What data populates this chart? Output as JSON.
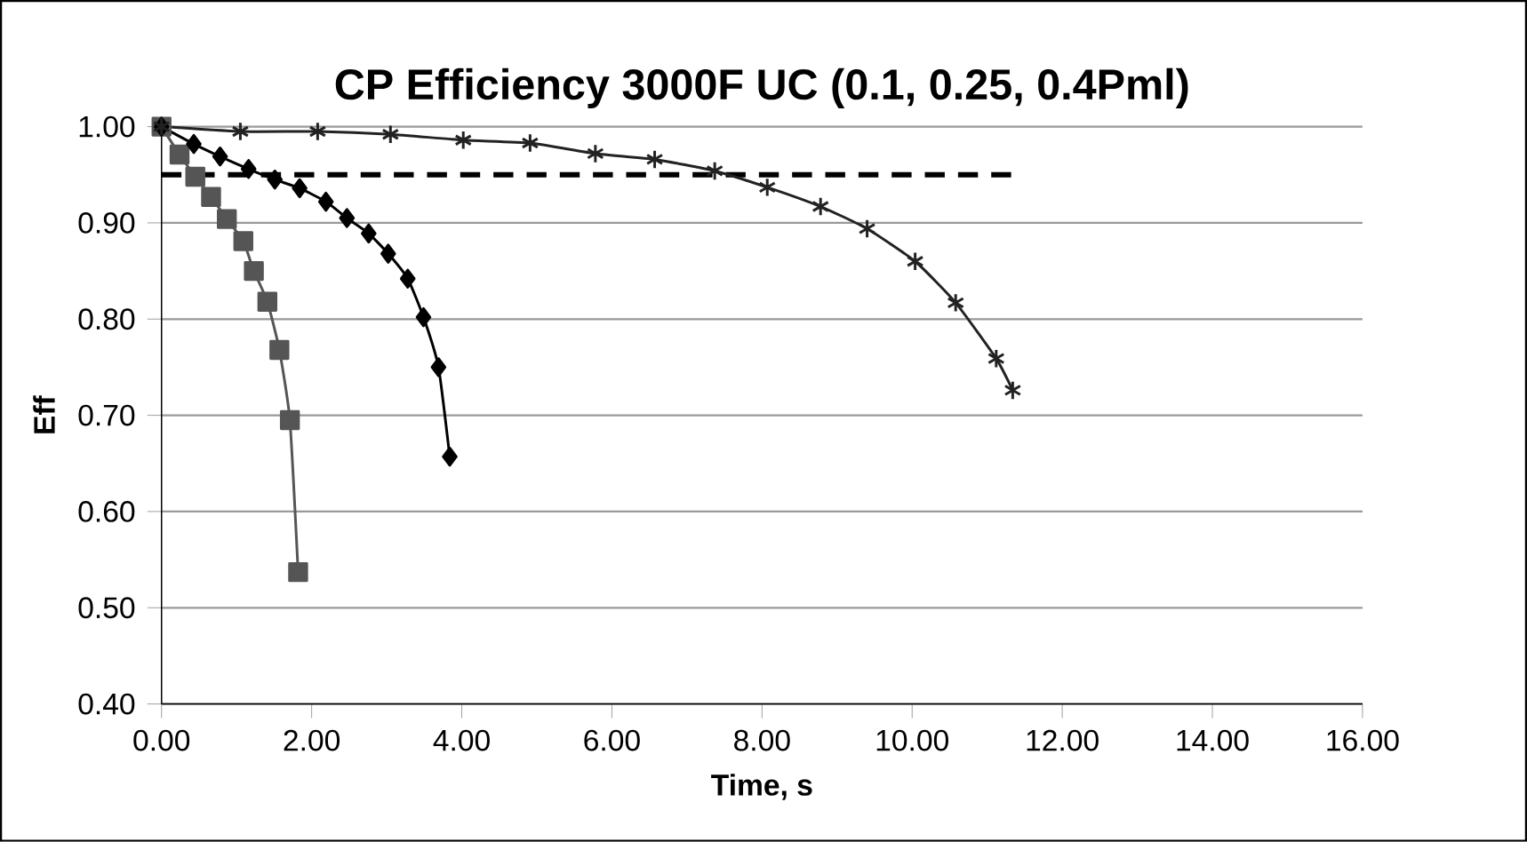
{
  "chart_data": {
    "type": "line",
    "title": "CP Efficiency 3000F UC (0.1, 0.25, 0.4Pml)",
    "xlabel": "Time, s",
    "ylabel": "Eff",
    "xlim": [
      0,
      16
    ],
    "xticks": [
      {
        "value": 0,
        "label": "0.00"
      },
      {
        "value": 2,
        "label": "2.00"
      },
      {
        "value": 4,
        "label": "4.00"
      },
      {
        "value": 6,
        "label": "6.00"
      },
      {
        "value": 8,
        "label": "8.00"
      },
      {
        "value": 10,
        "label": "10.00"
      },
      {
        "value": 12,
        "label": "12.00"
      },
      {
        "value": 14,
        "label": "14.00"
      },
      {
        "value": 16,
        "label": "16.00"
      }
    ],
    "ylim": [
      0.4,
      1.0
    ],
    "yticks": [
      {
        "value": 0.4,
        "label": "0.40"
      },
      {
        "value": 0.5,
        "label": "0.50"
      },
      {
        "value": 0.6,
        "label": "0.60"
      },
      {
        "value": 0.7,
        "label": "0.70"
      },
      {
        "value": 0.8,
        "label": "0.80"
      },
      {
        "value": 0.9,
        "label": "0.90"
      },
      {
        "value": 1.0,
        "label": "1.00"
      }
    ],
    "grid": "y",
    "series": [
      {
        "color": "#555555",
        "marker": "square",
        "x": [
          0,
          0.24,
          0.45,
          0.66,
          0.87,
          1.09,
          1.23,
          1.41,
          1.57,
          1.71,
          1.82
        ],
        "values": [
          1.0,
          0.971,
          0.948,
          0.927,
          0.904,
          0.881,
          0.85,
          0.818,
          0.768,
          0.695,
          0.537
        ]
      },
      {
        "color": "#000000",
        "marker": "diamond",
        "x": [
          0,
          0.43,
          0.78,
          1.16,
          1.51,
          1.84,
          2.19,
          2.47,
          2.76,
          3.02,
          3.28,
          3.49,
          3.69,
          3.84
        ],
        "values": [
          1.0,
          0.982,
          0.969,
          0.956,
          0.945,
          0.936,
          0.922,
          0.905,
          0.889,
          0.868,
          0.842,
          0.802,
          0.75,
          0.657
        ]
      },
      {
        "color": "#222222",
        "marker": "cross",
        "x": [
          0,
          1.05,
          2.08,
          3.05,
          4.02,
          4.91,
          5.78,
          6.57,
          7.37,
          8.07,
          8.78,
          9.4,
          10.04,
          10.58,
          11.12,
          11.34
        ],
        "values": [
          1.0,
          0.995,
          0.995,
          0.992,
          0.986,
          0.983,
          0.972,
          0.966,
          0.954,
          0.937,
          0.917,
          0.894,
          0.86,
          0.817,
          0.759,
          0.726
        ]
      }
    ],
    "ref_lines": [
      {
        "axis": "y",
        "value": 0.95,
        "color": "#000000",
        "line_style": "dashed"
      }
    ]
  }
}
